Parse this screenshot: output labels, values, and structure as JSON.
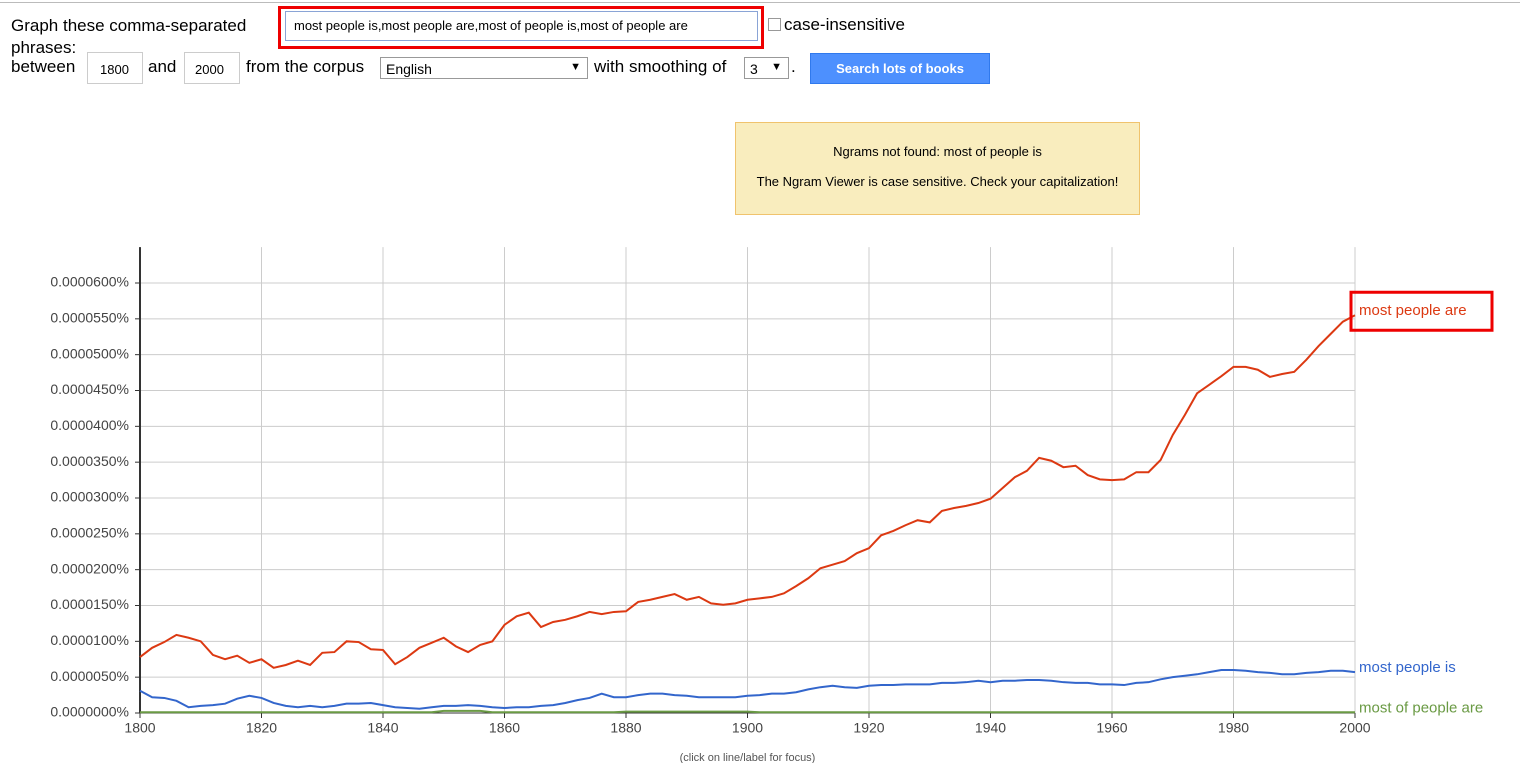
{
  "form": {
    "label": "Graph these comma-separated phrases:",
    "query": "most people is,most people are,most of people is,most of people are",
    "case_insensitive": "case-insensitive",
    "between": "between",
    "start_year": "1800",
    "and": "and",
    "end_year": "2000",
    "corpus_label": "from the corpus",
    "corpus": "English",
    "smoothing_label": "with smoothing of",
    "smoothing": "3",
    "period": ".",
    "button": "Search lots of books"
  },
  "notice": {
    "line1": "Ngrams not found: most of people is",
    "line2": "The Ngram Viewer is case sensitive. Check your capitalization!"
  },
  "chart_data": {
    "type": "line",
    "footnote": "(click on line/label for focus)",
    "x": [
      1800,
      1802,
      1804,
      1806,
      1808,
      1810,
      1812,
      1814,
      1816,
      1818,
      1820,
      1822,
      1824,
      1826,
      1828,
      1830,
      1832,
      1834,
      1836,
      1838,
      1840,
      1842,
      1844,
      1846,
      1848,
      1850,
      1852,
      1854,
      1856,
      1858,
      1860,
      1862,
      1864,
      1866,
      1868,
      1870,
      1872,
      1874,
      1876,
      1878,
      1880,
      1882,
      1884,
      1886,
      1888,
      1890,
      1892,
      1894,
      1896,
      1898,
      1900,
      1902,
      1904,
      1906,
      1908,
      1910,
      1912,
      1914,
      1916,
      1918,
      1920,
      1922,
      1924,
      1926,
      1928,
      1930,
      1932,
      1934,
      1936,
      1938,
      1940,
      1942,
      1944,
      1946,
      1948,
      1950,
      1952,
      1954,
      1956,
      1958,
      1960,
      1962,
      1964,
      1966,
      1968,
      1970,
      1972,
      1974,
      1976,
      1978,
      1980,
      1982,
      1984,
      1986,
      1988,
      1990,
      1992,
      1994,
      1996,
      1998,
      2000
    ],
    "series": [
      {
        "name": "most people are",
        "color": "#dc3912",
        "values": [
          7.8e-06,
          9.1e-06,
          9.9e-06,
          1.09e-05,
          1.05e-05,
          1e-05,
          8.1e-06,
          7.5e-06,
          8e-06,
          7e-06,
          7.5e-06,
          6.3e-06,
          6.7e-06,
          7.3e-06,
          6.7e-06,
          8.4e-06,
          8.5e-06,
          1e-05,
          9.9e-06,
          8.9e-06,
          8.8e-06,
          6.8e-06,
          7.8e-06,
          9.1e-06,
          9.8e-06,
          1.05e-05,
          9.3e-06,
          8.5e-06,
          9.5e-06,
          1e-05,
          1.23e-05,
          1.35e-05,
          1.4e-05,
          1.2e-05,
          1.27e-05,
          1.3e-05,
          1.35e-05,
          1.41e-05,
          1.38e-05,
          1.41e-05,
          1.42e-05,
          1.55e-05,
          1.58e-05,
          1.62e-05,
          1.66e-05,
          1.58e-05,
          1.62e-05,
          1.53e-05,
          1.51e-05,
          1.53e-05,
          1.58e-05,
          1.6e-05,
          1.62e-05,
          1.67e-05,
          1.77e-05,
          1.88e-05,
          2.02e-05,
          2.07e-05,
          2.12e-05,
          2.23e-05,
          2.3e-05,
          2.48e-05,
          2.54e-05,
          2.62e-05,
          2.69e-05,
          2.66e-05,
          2.82e-05,
          2.86e-05,
          2.89e-05,
          2.93e-05,
          2.99e-05,
          3.14e-05,
          3.29e-05,
          3.38e-05,
          3.56e-05,
          3.52e-05,
          3.43e-05,
          3.45e-05,
          3.32e-05,
          3.26e-05,
          3.25e-05,
          3.26e-05,
          3.36e-05,
          3.36e-05,
          3.53e-05,
          3.88e-05,
          4.16e-05,
          4.46e-05,
          4.58e-05,
          4.7e-05,
          4.83e-05,
          4.83e-05,
          4.79e-05,
          4.69e-05,
          4.73e-05,
          4.76e-05,
          4.93e-05,
          5.12e-05,
          5.29e-05,
          5.46e-05,
          5.55e-05
        ]
      },
      {
        "name": "most people is",
        "color": "#3366cc",
        "values": [
          3.1e-06,
          2.2e-06,
          2.1e-06,
          1.7e-06,
          8e-07,
          1e-06,
          1.1e-06,
          1.3e-06,
          2e-06,
          2.4e-06,
          2.1e-06,
          1.4e-06,
          1e-06,
          8e-07,
          1e-06,
          8e-07,
          1e-06,
          1.3e-06,
          1.3e-06,
          1.4e-06,
          1.1e-06,
          8e-07,
          7e-07,
          6e-07,
          8e-07,
          1e-06,
          1e-06,
          1.1e-06,
          1e-06,
          8e-07,
          7e-07,
          8e-07,
          8e-07,
          1e-06,
          1.1e-06,
          1.4e-06,
          1.8e-06,
          2.1e-06,
          2.7e-06,
          2.2e-06,
          2.2e-06,
          2.5e-06,
          2.7e-06,
          2.7e-06,
          2.5e-06,
          2.4e-06,
          2.2e-06,
          2.2e-06,
          2.2e-06,
          2.2e-06,
          2.4e-06,
          2.5e-06,
          2.7e-06,
          2.7e-06,
          2.9e-06,
          3.3e-06,
          3.6e-06,
          3.8e-06,
          3.6e-06,
          3.5e-06,
          3.8e-06,
          3.9e-06,
          3.9e-06,
          4e-06,
          4e-06,
          4e-06,
          4.2e-06,
          4.2e-06,
          4.3e-06,
          4.5e-06,
          4.3e-06,
          4.5e-06,
          4.5e-06,
          4.6e-06,
          4.6e-06,
          4.5e-06,
          4.3e-06,
          4.2e-06,
          4.2e-06,
          4e-06,
          4e-06,
          3.9e-06,
          4.2e-06,
          4.3e-06,
          4.7e-06,
          5e-06,
          5.2e-06,
          5.4e-06,
          5.7e-06,
          6e-06,
          6e-06,
          5.9e-06,
          5.7e-06,
          5.6e-06,
          5.4e-06,
          5.4e-06,
          5.6e-06,
          5.7e-06,
          5.9e-06,
          5.9e-06,
          5.7e-06
        ]
      },
      {
        "name": "most of people are",
        "color": "#6a9a44",
        "values": [
          1e-07,
          1e-07,
          1e-07,
          1e-07,
          1e-07,
          1e-07,
          1e-07,
          1e-07,
          1e-07,
          1e-07,
          1e-07,
          1e-07,
          1e-07,
          1e-07,
          1e-07,
          1e-07,
          1e-07,
          1e-07,
          1e-07,
          1e-07,
          1e-07,
          1e-07,
          1e-07,
          1e-07,
          1e-07,
          3e-07,
          3e-07,
          3e-07,
          3e-07,
          1e-07,
          1e-07,
          1e-07,
          1e-07,
          1e-07,
          1e-07,
          1e-07,
          1e-07,
          1e-07,
          1e-07,
          1e-07,
          2e-07,
          2e-07,
          2e-07,
          2e-07,
          2e-07,
          2e-07,
          2e-07,
          2e-07,
          2e-07,
          2e-07,
          2e-07,
          1e-07,
          1e-07,
          1e-07,
          1e-07,
          1e-07,
          1e-07,
          1e-07,
          1e-07,
          1e-07,
          1e-07,
          1e-07,
          1e-07,
          1e-07,
          1e-07,
          1e-07,
          1e-07,
          1e-07,
          1e-07,
          1e-07,
          1e-07,
          1e-07,
          1e-07,
          1e-07,
          1e-07,
          1e-07,
          1e-07,
          1e-07,
          1e-07,
          1e-07,
          1e-07,
          1e-07,
          1e-07,
          1e-07,
          1e-07,
          1e-07,
          1e-07,
          1e-07,
          1e-07,
          1e-07,
          1e-07,
          1e-07,
          1e-07,
          1e-07,
          1e-07,
          1e-07,
          1e-07,
          1e-07,
          1e-07,
          1e-07,
          1e-07
        ]
      }
    ],
    "xlim": [
      1800,
      2000
    ],
    "xticks": [
      1800,
      1820,
      1840,
      1860,
      1880,
      1900,
      1920,
      1940,
      1960,
      1980,
      2000
    ],
    "ylim": [
      0,
      6.5e-05
    ],
    "yticks": [
      {
        "value": 0,
        "label": "0.0000000%"
      },
      {
        "value": 5e-06,
        "label": "0.0000050%"
      },
      {
        "value": 1e-05,
        "label": "0.0000100%"
      },
      {
        "value": 1.5e-05,
        "label": "0.0000150%"
      },
      {
        "value": 2e-05,
        "label": "0.0000200%"
      },
      {
        "value": 2.5e-05,
        "label": "0.0000250%"
      },
      {
        "value": 3e-05,
        "label": "0.0000300%"
      },
      {
        "value": 3.5e-05,
        "label": "0.0000350%"
      },
      {
        "value": 4e-05,
        "label": "0.0000400%"
      },
      {
        "value": 4.5e-05,
        "label": "0.0000450%"
      },
      {
        "value": 5e-05,
        "label": "0.0000500%"
      },
      {
        "value": 5.5e-05,
        "label": "0.0000550%"
      },
      {
        "value": 6e-05,
        "label": "0.0000600%"
      }
    ],
    "grid": true
  }
}
